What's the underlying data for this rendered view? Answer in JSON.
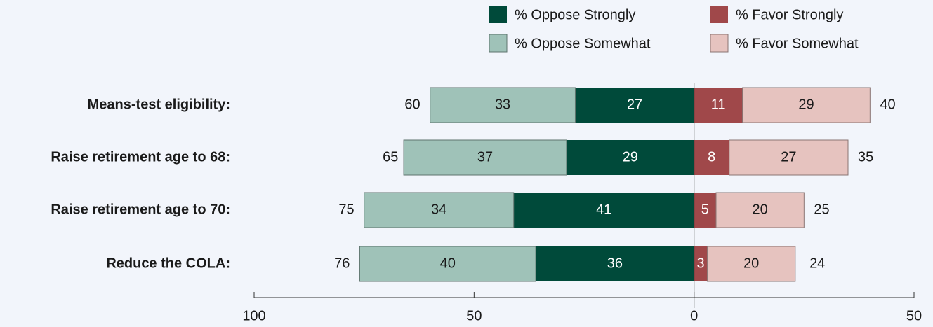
{
  "chart_data": {
    "type": "diverging-bar",
    "categories": [
      "Means-test eligibility:",
      "Raise retirement age to 68:",
      "Raise retirement age to 70:",
      "Reduce the COLA:"
    ],
    "series": [
      {
        "name": "% Oppose Strongly",
        "color": "#004a3a",
        "values": [
          -27,
          -29,
          -41,
          -36
        ],
        "value_labels": [
          "27",
          "29",
          "41",
          "36"
        ]
      },
      {
        "name": "% Oppose Somewhat",
        "color": "#9fc2b8",
        "values": [
          -33,
          -37,
          -34,
          -40
        ],
        "value_labels": [
          "33",
          "37",
          "34",
          "40"
        ]
      },
      {
        "name": "% Favor Strongly",
        "color": "#a0484a",
        "values": [
          11,
          8,
          5,
          3
        ]
      },
      {
        "name": "% Favor Somewhat",
        "color": "#e6c3bf",
        "values": [
          29,
          27,
          20,
          20
        ]
      }
    ],
    "oppose_totals": {
      "values": [
        -60,
        -65,
        -75,
        -76
      ],
      "value_labels": [
        "60",
        "65",
        "75",
        "76"
      ]
    },
    "favor_totals": [
      40,
      35,
      25,
      24
    ],
    "xlim": [
      -100,
      50
    ],
    "xticks": [
      {
        "value": -100,
        "label": "100"
      },
      {
        "value": -50,
        "label": "50"
      },
      0,
      50
    ]
  }
}
